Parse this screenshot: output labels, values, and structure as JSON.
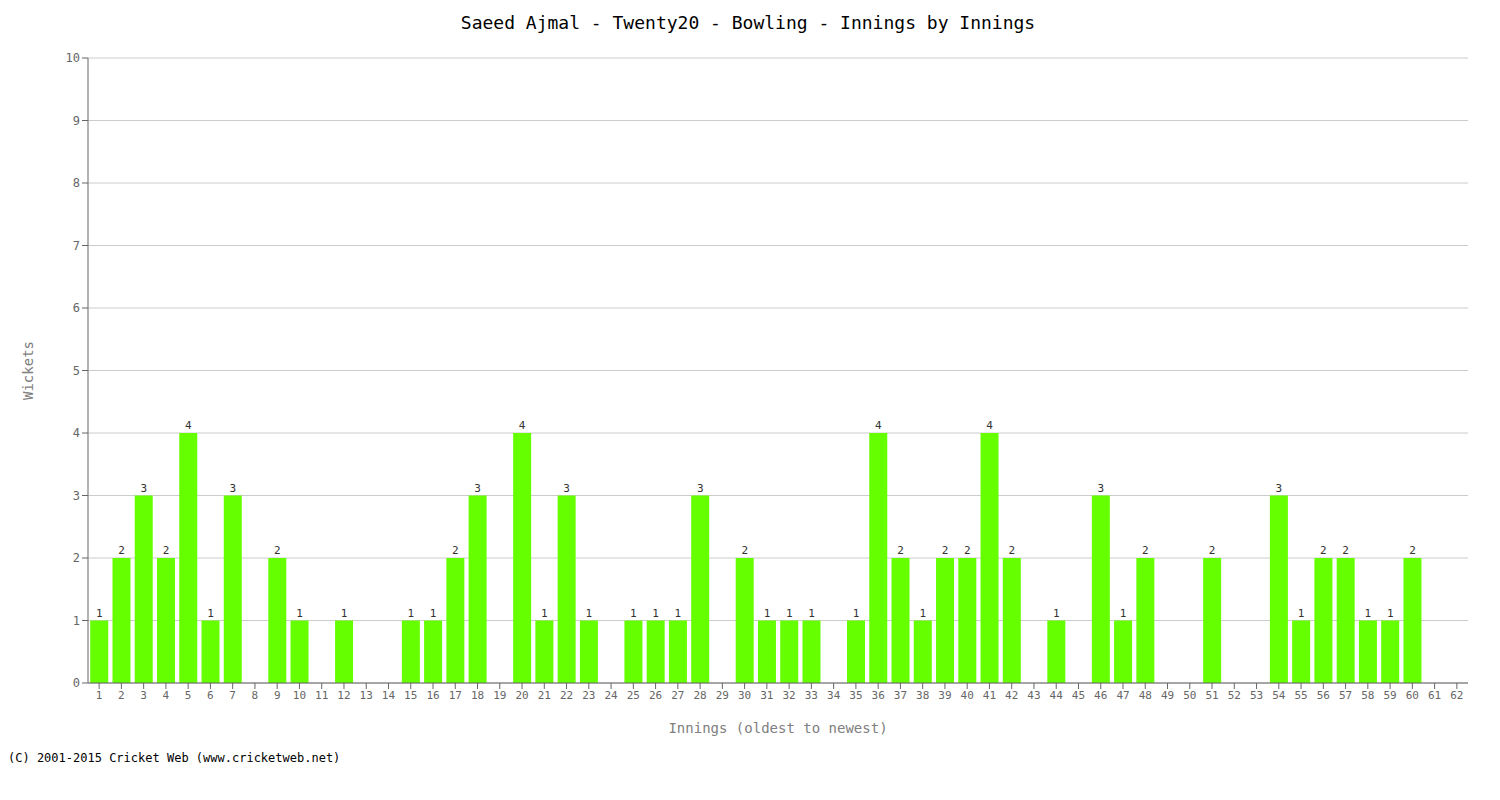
{
  "chart_data": {
    "type": "bar",
    "title": "Saeed Ajmal - Twenty20 - Bowling - Innings by Innings",
    "xlabel": "Innings (oldest to newest)",
    "ylabel": "Wickets",
    "annotations": [
      "(C) 2001-2015 Cricket Web (www.cricketweb.net)"
    ],
    "categories": [
      "1",
      "2",
      "3",
      "4",
      "5",
      "6",
      "7",
      "8",
      "9",
      "10",
      "11",
      "12",
      "13",
      "14",
      "15",
      "16",
      "17",
      "18",
      "19",
      "20",
      "21",
      "22",
      "23",
      "24",
      "25",
      "26",
      "27",
      "28",
      "29",
      "30",
      "31",
      "32",
      "33",
      "34",
      "35",
      "36",
      "37",
      "38",
      "39",
      "40",
      "41",
      "42",
      "43",
      "44",
      "45",
      "46",
      "47",
      "48",
      "49",
      "50",
      "51",
      "52",
      "53",
      "54",
      "55",
      "56",
      "57",
      "58",
      "59",
      "60",
      "61",
      "62"
    ],
    "values": [
      1,
      2,
      3,
      2,
      4,
      1,
      3,
      0,
      2,
      1,
      0,
      1,
      0,
      0,
      1,
      1,
      2,
      3,
      0,
      4,
      1,
      3,
      1,
      0,
      1,
      1,
      1,
      3,
      0,
      2,
      1,
      1,
      1,
      0,
      1,
      4,
      2,
      1,
      2,
      2,
      4,
      2,
      0,
      1,
      0,
      3,
      1,
      2,
      0,
      0,
      2,
      0,
      0,
      3,
      1,
      2,
      2,
      1,
      1,
      2,
      0,
      0
    ],
    "color": "#66ff00",
    "ylim": [
      0,
      10
    ],
    "yticks": [
      0,
      1,
      2,
      3,
      4,
      5,
      6,
      7,
      8,
      9,
      10
    ],
    "grid": true,
    "data_labels": true
  }
}
